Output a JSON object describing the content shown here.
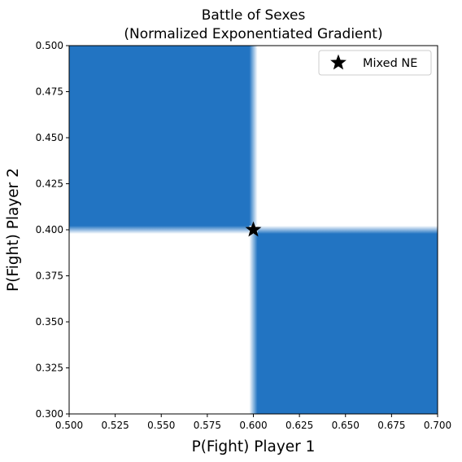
{
  "chart_data": {
    "type": "heatmap",
    "title_line1": "Battle of Sexes",
    "title_line2": "(Normalized Exponentiated Gradient)",
    "xlabel": "P(Fight) Player 1",
    "ylabel": "P(Fight) Player 2",
    "xlim": [
      0.5,
      0.7
    ],
    "ylim": [
      0.3,
      0.5
    ],
    "xticks": [
      "0.500",
      "0.525",
      "0.550",
      "0.575",
      "0.600",
      "0.625",
      "0.650",
      "0.675",
      "0.700"
    ],
    "yticks": [
      "0.300",
      "0.325",
      "0.350",
      "0.375",
      "0.400",
      "0.425",
      "0.450",
      "0.475",
      "0.500"
    ],
    "fill_color": "#2274c2",
    "regions": [
      {
        "x": [
          0.5,
          0.6
        ],
        "y": [
          0.4,
          0.5
        ]
      },
      {
        "x": [
          0.6,
          0.7
        ],
        "y": [
          0.3,
          0.4
        ]
      }
    ],
    "points": [
      {
        "name": "Mixed NE",
        "x": 0.6,
        "y": 0.4,
        "marker": "star"
      }
    ],
    "legend": {
      "entries": [
        "Mixed NE"
      ],
      "placement": "top-right"
    }
  }
}
